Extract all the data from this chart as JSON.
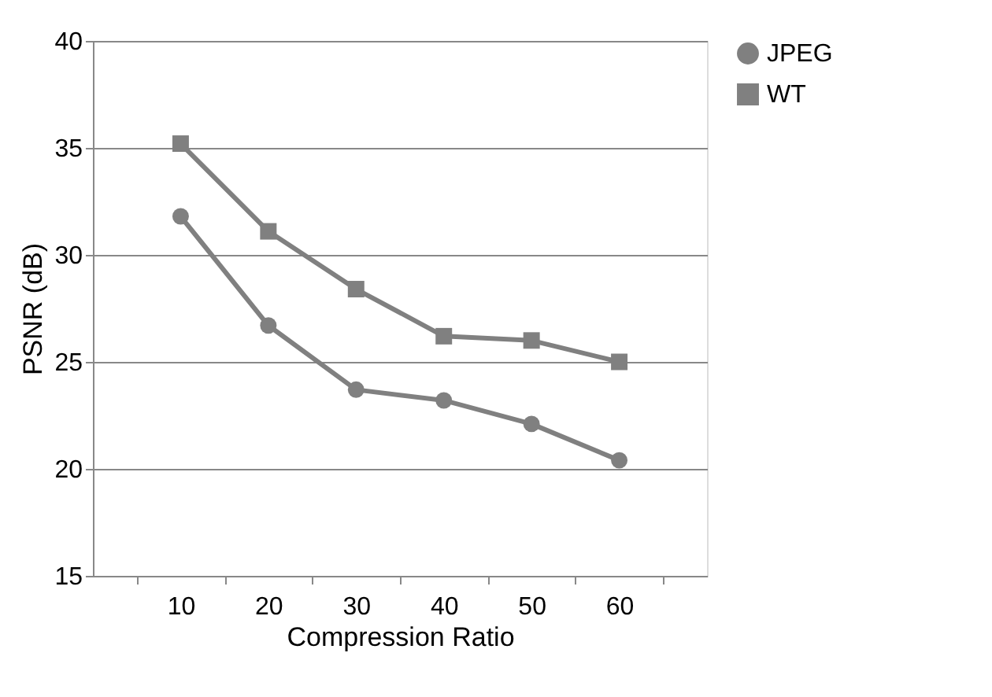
{
  "chart_data": {
    "type": "line",
    "xlabel": "Compression Ratio",
    "ylabel": "PSNR (dB)",
    "categories": [
      "10",
      "20",
      "30",
      "40",
      "50",
      "60"
    ],
    "series": [
      {
        "name": "JPEG",
        "color": "#808080",
        "marker": "circle",
        "values": [
          31.8,
          26.7,
          23.7,
          23.2,
          22.1,
          20.4
        ]
      },
      {
        "name": "WT",
        "color": "#808080",
        "marker": "square",
        "values": [
          35.2,
          31.1,
          28.4,
          26.2,
          26.0,
          25.0
        ]
      }
    ],
    "ylim": [
      15,
      40
    ],
    "yticks": [
      15,
      20,
      25,
      30,
      35,
      40
    ],
    "grid": "y",
    "legend": "right",
    "line_style": "solid"
  }
}
